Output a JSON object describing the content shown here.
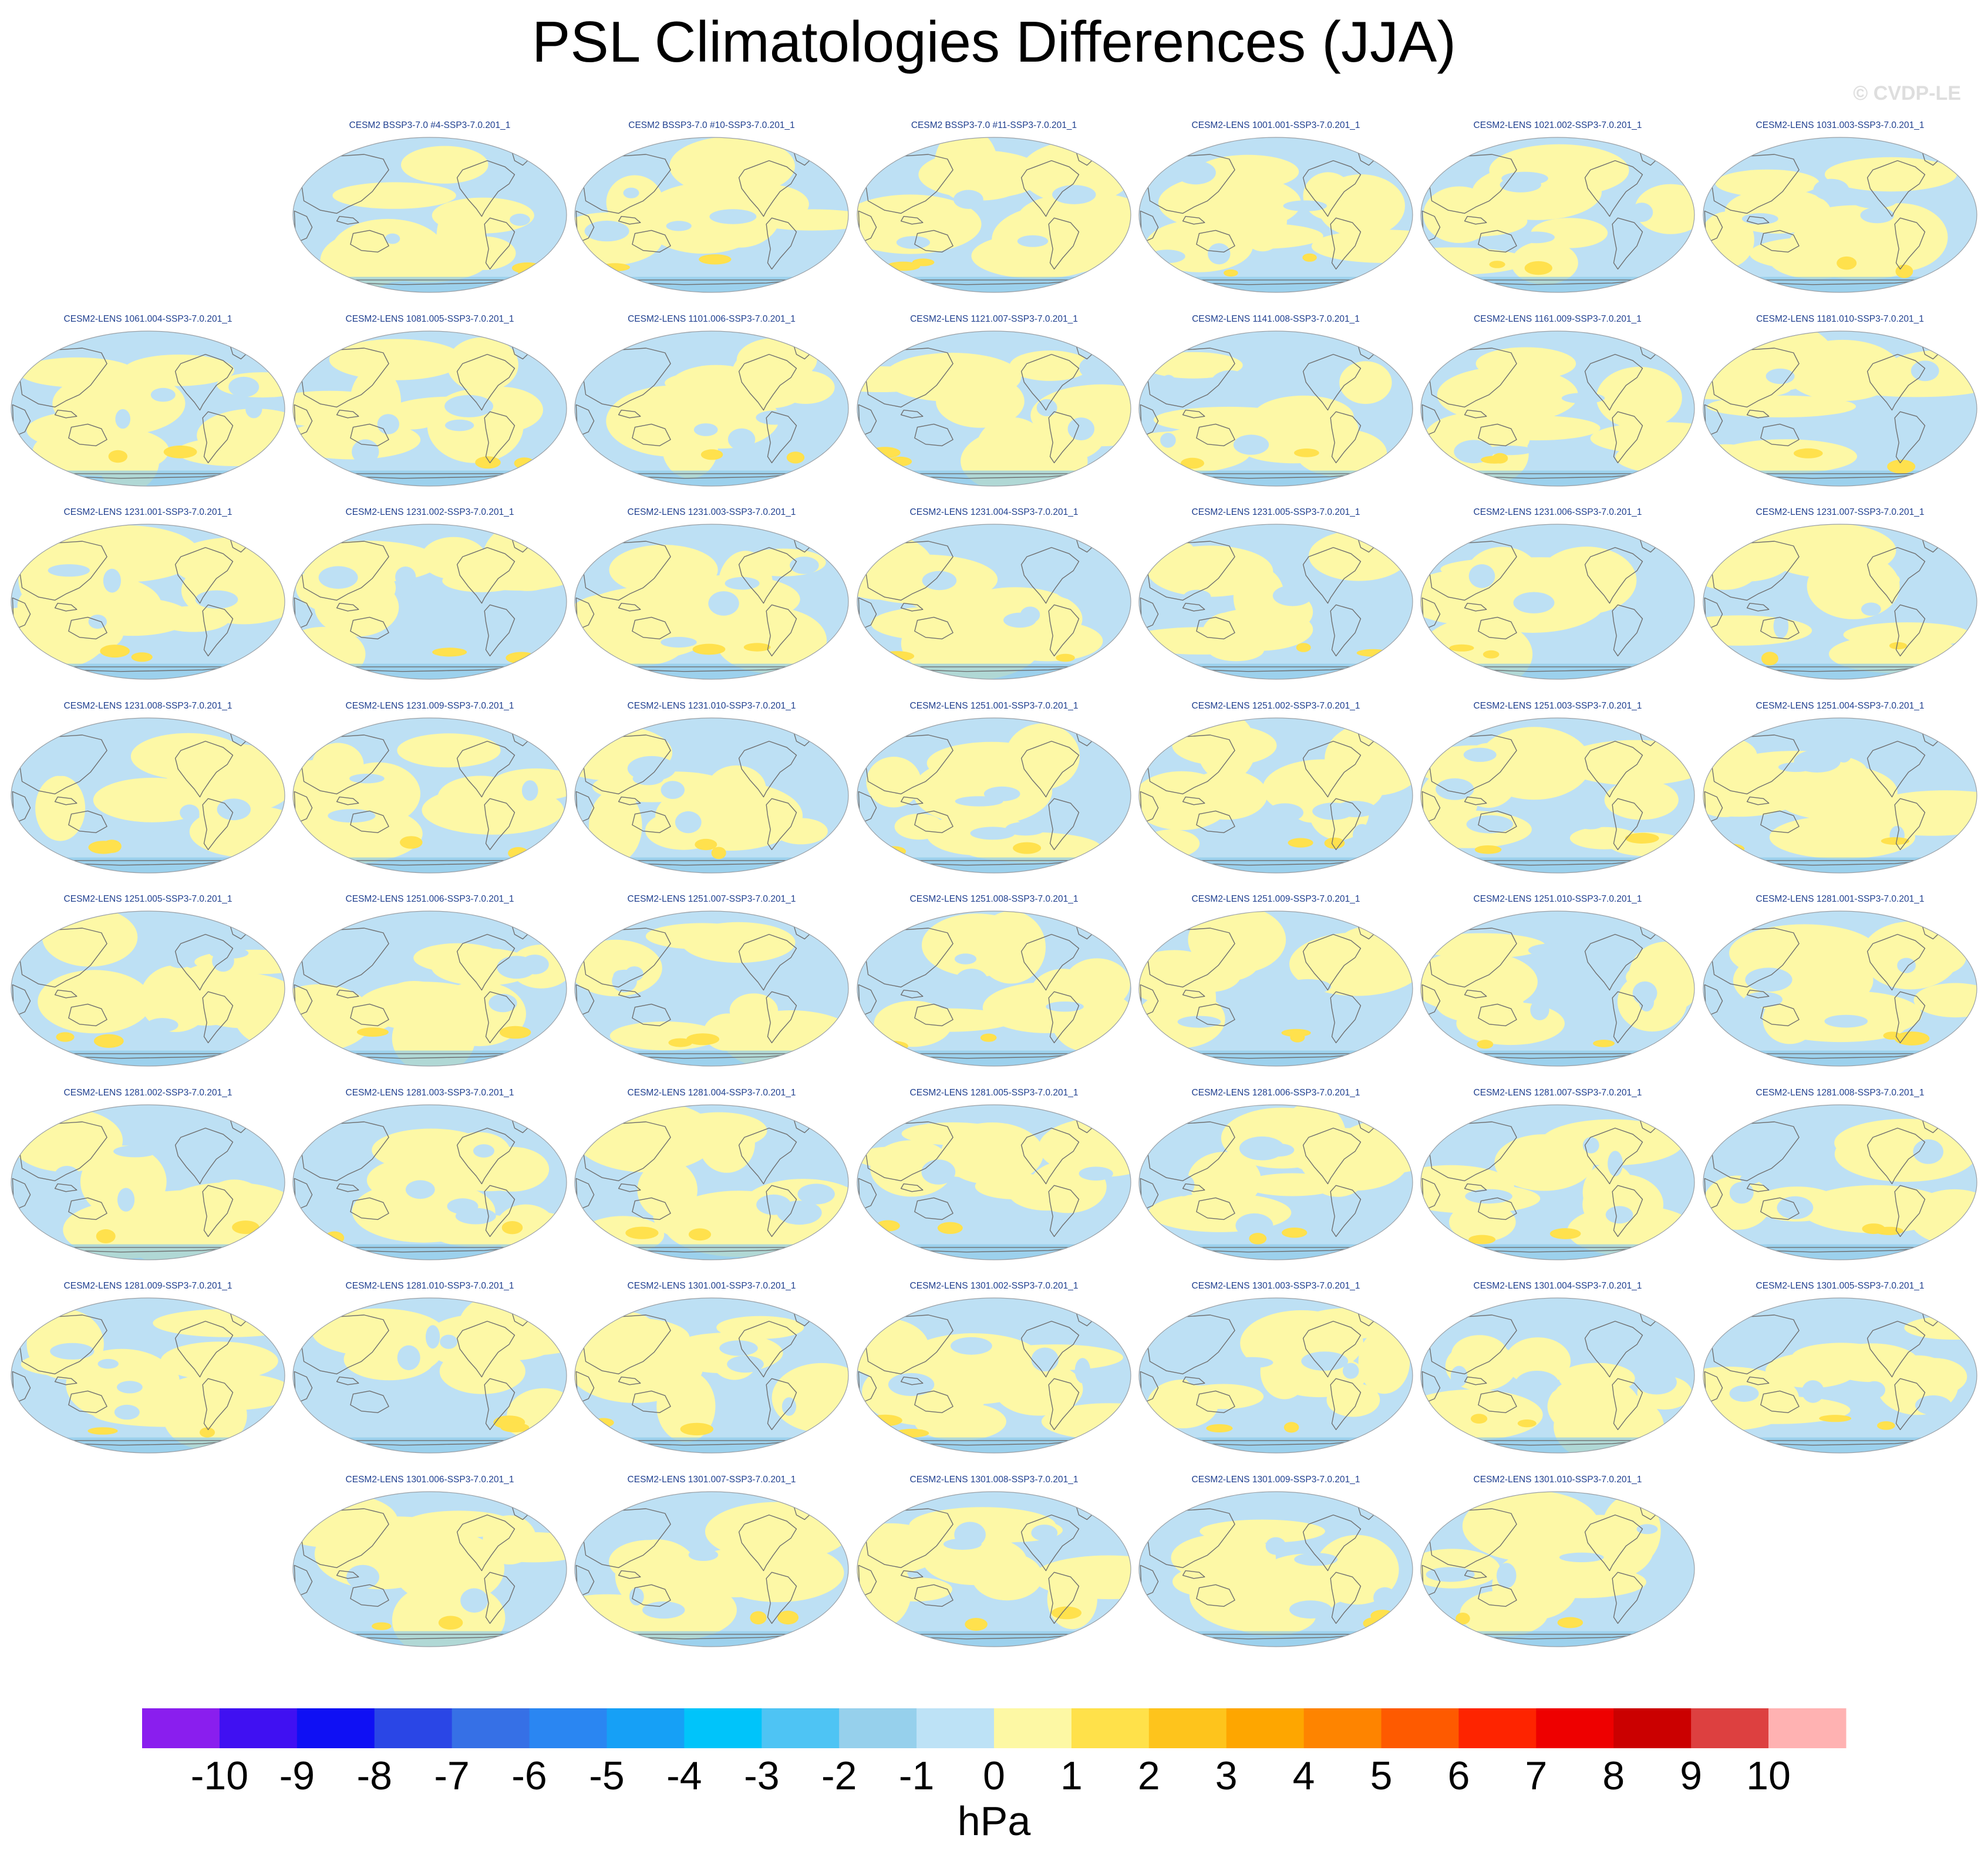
{
  "title": "PSL Climatologies Differences (JJA)",
  "copyright": "© CVDP-LE",
  "colors": {
    "ocean_neg": "#bde0f4",
    "land_pos": "#fdf8a6",
    "strong_pos": "#ffe14d",
    "mid_neg": "#8ecbea",
    "strong_neg": "#5ab3e8",
    "coast": "#6f6f6f",
    "panel_title": "#1f3f8f"
  },
  "panel_rows": [
    [
      "",
      "CESM2 BSSP3-7.0 #4-SSP3-7.0.201_1",
      "CESM2 BSSP3-7.0 #10-SSP3-7.0.201_1",
      "CESM2 BSSP3-7.0 #11-SSP3-7.0.201_1",
      "CESM2-LENS 1001.001-SSP3-7.0.201_1",
      "CESM2-LENS 1021.002-SSP3-7.0.201_1",
      "CESM2-LENS 1031.003-SSP3-7.0.201_1"
    ],
    [
      "CESM2-LENS 1061.004-SSP3-7.0.201_1",
      "CESM2-LENS 1081.005-SSP3-7.0.201_1",
      "CESM2-LENS 1101.006-SSP3-7.0.201_1",
      "CESM2-LENS 1121.007-SSP3-7.0.201_1",
      "CESM2-LENS 1141.008-SSP3-7.0.201_1",
      "CESM2-LENS 1161.009-SSP3-7.0.201_1",
      "CESM2-LENS 1181.010-SSP3-7.0.201_1"
    ],
    [
      "CESM2-LENS 1231.001-SSP3-7.0.201_1",
      "CESM2-LENS 1231.002-SSP3-7.0.201_1",
      "CESM2-LENS 1231.003-SSP3-7.0.201_1",
      "CESM2-LENS 1231.004-SSP3-7.0.201_1",
      "CESM2-LENS 1231.005-SSP3-7.0.201_1",
      "CESM2-LENS 1231.006-SSP3-7.0.201_1",
      "CESM2-LENS 1231.007-SSP3-7.0.201_1"
    ],
    [
      "CESM2-LENS 1231.008-SSP3-7.0.201_1",
      "CESM2-LENS 1231.009-SSP3-7.0.201_1",
      "CESM2-LENS 1231.010-SSP3-7.0.201_1",
      "CESM2-LENS 1251.001-SSP3-7.0.201_1",
      "CESM2-LENS 1251.002-SSP3-7.0.201_1",
      "CESM2-LENS 1251.003-SSP3-7.0.201_1",
      "CESM2-LENS 1251.004-SSP3-7.0.201_1"
    ],
    [
      "CESM2-LENS 1251.005-SSP3-7.0.201_1",
      "CESM2-LENS 1251.006-SSP3-7.0.201_1",
      "CESM2-LENS 1251.007-SSP3-7.0.201_1",
      "CESM2-LENS 1251.008-SSP3-7.0.201_1",
      "CESM2-LENS 1251.009-SSP3-7.0.201_1",
      "CESM2-LENS 1251.010-SSP3-7.0.201_1",
      "CESM2-LENS 1281.001-SSP3-7.0.201_1"
    ],
    [
      "CESM2-LENS 1281.002-SSP3-7.0.201_1",
      "CESM2-LENS 1281.003-SSP3-7.0.201_1",
      "CESM2-LENS 1281.004-SSP3-7.0.201_1",
      "CESM2-LENS 1281.005-SSP3-7.0.201_1",
      "CESM2-LENS 1281.006-SSP3-7.0.201_1",
      "CESM2-LENS 1281.007-SSP3-7.0.201_1",
      "CESM2-LENS 1281.008-SSP3-7.0.201_1"
    ],
    [
      "CESM2-LENS 1281.009-SSP3-7.0.201_1",
      "CESM2-LENS 1281.010-SSP3-7.0.201_1",
      "CESM2-LENS 1301.001-SSP3-7.0.201_1",
      "CESM2-LENS 1301.002-SSP3-7.0.201_1",
      "CESM2-LENS 1301.003-SSP3-7.0.201_1",
      "CESM2-LENS 1301.004-SSP3-7.0.201_1",
      "CESM2-LENS 1301.005-SSP3-7.0.201_1"
    ],
    [
      "",
      "CESM2-LENS 1301.006-SSP3-7.0.201_1",
      "CESM2-LENS 1301.007-SSP3-7.0.201_1",
      "CESM2-LENS 1301.008-SSP3-7.0.201_1",
      "CESM2-LENS 1301.009-SSP3-7.0.201_1",
      "CESM2-LENS 1301.010-SSP3-7.0.201_1",
      ""
    ]
  ],
  "chart_data": {
    "type": "heatmap",
    "title": "PSL Climatologies Differences (JJA)",
    "projection": "Robinson, Pacific-centered global maps",
    "colorbar": {
      "unit": "hPa",
      "tick_labels": [
        "-10",
        "-9",
        "-8",
        "-7",
        "-6",
        "-5",
        "-4",
        "-3",
        "-2",
        "-1",
        "0",
        "1",
        "2",
        "3",
        "4",
        "5",
        "6",
        "7",
        "8",
        "9",
        "10"
      ],
      "colors": [
        "#8a1eee",
        "#4010f2",
        "#0f10f4",
        "#2a46e6",
        "#3670e6",
        "#2a86f2",
        "#16a0f6",
        "#00c4fa",
        "#4ec4f4",
        "#96d0ec",
        "#bde2f6",
        "#fdf8a4",
        "#ffe14a",
        "#fec41c",
        "#fea600",
        "#fe8400",
        "#fe5a00",
        "#fe2400",
        "#ee0000",
        "#cb0000",
        "#dd4040",
        "#ffb2b2"
      ]
    }
  }
}
